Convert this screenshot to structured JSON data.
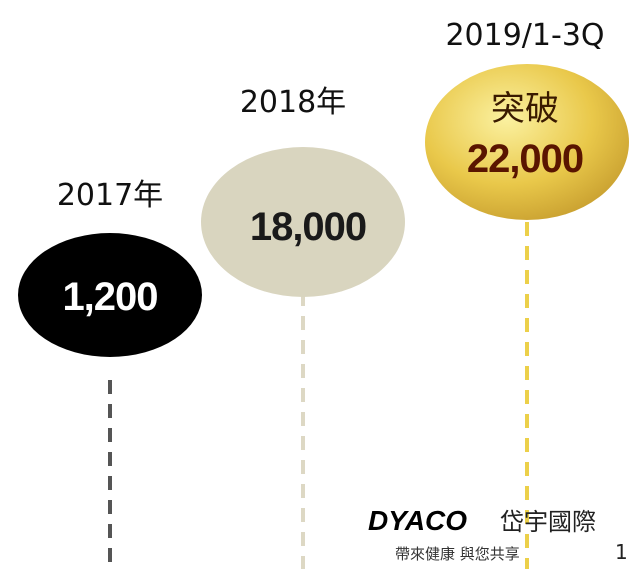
{
  "milestones": [
    {
      "period": "2017年",
      "value": "1,200"
    },
    {
      "period": "2018年",
      "value": "18,000"
    },
    {
      "period": "2019/1-3Q",
      "prefix": "突破",
      "value": "22,000"
    }
  ],
  "logo": {
    "brand": "DYACO",
    "name": "岱宇國際",
    "slogan": "帶來健康 與您共享"
  },
  "page_number": "1"
}
